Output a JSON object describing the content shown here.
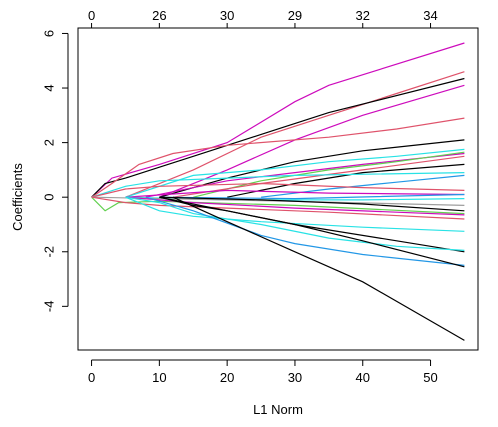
{
  "chart_data": {
    "type": "line",
    "title": "",
    "xlabel": "L1 Norm",
    "ylabel": "Coefficients",
    "xlim": [
      -2,
      57
    ],
    "ylim": [
      -5.6,
      6.2
    ],
    "x_ticks": [
      0,
      10,
      20,
      30,
      40,
      50
    ],
    "x_tick_labels": [
      "0",
      "10",
      "20",
      "30",
      "40",
      "50"
    ],
    "y_ticks": [
      -4,
      -2,
      0,
      2,
      4,
      6
    ],
    "y_tick_labels": [
      "-4",
      "-2",
      "0",
      "2",
      "4",
      "6"
    ],
    "top_ticks": [
      0,
      10,
      20,
      30,
      40,
      50
    ],
    "top_tick_labels": [
      "0",
      "26",
      "30",
      "29",
      "32",
      "34"
    ],
    "grid": false,
    "legend": "none",
    "series": [
      {
        "color": "#CD0BBC",
        "points": [
          [
            0,
            0
          ],
          [
            3,
            0.7
          ],
          [
            10,
            1.2
          ],
          [
            20,
            2
          ],
          [
            30,
            3.5
          ],
          [
            35,
            4.1
          ],
          [
            55,
            5.65
          ]
        ]
      },
      {
        "color": "#DF536B",
        "points": [
          [
            5,
            0
          ],
          [
            15,
            1
          ],
          [
            25,
            2.2
          ],
          [
            35,
            3
          ],
          [
            45,
            3.8
          ],
          [
            55,
            4.6
          ]
        ]
      },
      {
        "color": "#000000",
        "points": [
          [
            0,
            0
          ],
          [
            2,
            0.5
          ],
          [
            5,
            0.7
          ],
          [
            10,
            1.1
          ],
          [
            15,
            1.5
          ],
          [
            25,
            2.3
          ],
          [
            35,
            3.1
          ],
          [
            55,
            4.35
          ]
        ]
      },
      {
        "color": "#CD0BBC",
        "points": [
          [
            10,
            0
          ],
          [
            20,
            1
          ],
          [
            30,
            2.1
          ],
          [
            40,
            3
          ],
          [
            55,
            4.1
          ]
        ]
      },
      {
        "color": "#DF536B",
        "points": [
          [
            0,
            0
          ],
          [
            3,
            0.5
          ],
          [
            7,
            1.2
          ],
          [
            12,
            1.6
          ],
          [
            20,
            1.9
          ],
          [
            35,
            2.2
          ],
          [
            45,
            2.5
          ],
          [
            55,
            2.9
          ]
        ]
      },
      {
        "color": "#000000",
        "points": [
          [
            10,
            0
          ],
          [
            20,
            0.7
          ],
          [
            30,
            1.3
          ],
          [
            40,
            1.7
          ],
          [
            55,
            2.1
          ]
        ]
      },
      {
        "color": "#28E2E5",
        "points": [
          [
            5,
            0
          ],
          [
            15,
            0.8
          ],
          [
            25,
            1
          ],
          [
            35,
            1.3
          ],
          [
            45,
            1.5
          ],
          [
            55,
            1.75
          ]
        ]
      },
      {
        "color": "#CD0BBC",
        "points": [
          [
            8,
            0
          ],
          [
            20,
            0.6
          ],
          [
            30,
            0.9
          ],
          [
            40,
            1.2
          ],
          [
            55,
            1.6
          ]
        ]
      },
      {
        "color": "#61D04F",
        "points": [
          [
            15,
            0
          ],
          [
            25,
            0.6
          ],
          [
            35,
            1
          ],
          [
            45,
            1.3
          ],
          [
            55,
            1.65
          ]
        ]
      },
      {
        "color": "#DF536B",
        "points": [
          [
            12,
            0
          ],
          [
            25,
            0.5
          ],
          [
            40,
            1
          ],
          [
            55,
            1.5
          ]
        ]
      },
      {
        "color": "#000000",
        "points": [
          [
            20,
            0
          ],
          [
            30,
            0.5
          ],
          [
            40,
            0.9
          ],
          [
            55,
            1.2
          ]
        ]
      },
      {
        "color": "#2297E6",
        "points": [
          [
            25,
            0
          ],
          [
            35,
            0.3
          ],
          [
            45,
            0.55
          ],
          [
            55,
            0.8
          ]
        ]
      },
      {
        "color": "#28E2E5",
        "points": [
          [
            0,
            0
          ],
          [
            5,
            0.4
          ],
          [
            10,
            0.6
          ],
          [
            20,
            0.7
          ],
          [
            30,
            0.8
          ],
          [
            55,
            0.9
          ]
        ]
      },
      {
        "color": "#DF536B",
        "points": [
          [
            0,
            0
          ],
          [
            5,
            0.3
          ],
          [
            10,
            0.4
          ],
          [
            25,
            0.5
          ],
          [
            40,
            0.35
          ],
          [
            55,
            0.25
          ]
        ]
      },
      {
        "color": "#CD0BBC",
        "points": [
          [
            5,
            0
          ],
          [
            20,
            0.25
          ],
          [
            35,
            0.15
          ],
          [
            55,
            0.1
          ]
        ]
      },
      {
        "color": "#2297E6",
        "points": [
          [
            10,
            0
          ],
          [
            30,
            -0.05
          ],
          [
            55,
            0.1
          ]
        ]
      },
      {
        "color": "#28E2E5",
        "points": [
          [
            5,
            0
          ],
          [
            20,
            -0.1
          ],
          [
            40,
            -0.1
          ],
          [
            55,
            -0.05
          ]
        ]
      },
      {
        "color": "#9E9E9E",
        "points": [
          [
            0,
            0
          ],
          [
            30,
            -0.15
          ],
          [
            55,
            -0.3
          ]
        ]
      },
      {
        "color": "#000000",
        "points": [
          [
            10,
            0
          ],
          [
            25,
            -0.1
          ],
          [
            40,
            -0.25
          ],
          [
            55,
            -0.5
          ]
        ]
      },
      {
        "color": "#61D04F",
        "points": [
          [
            0,
            0
          ],
          [
            2,
            -0.5
          ],
          [
            4,
            -0.2
          ],
          [
            10,
            -0.15
          ],
          [
            30,
            -0.3
          ],
          [
            55,
            -0.6
          ]
        ]
      },
      {
        "color": "#DF536B",
        "points": [
          [
            0,
            0
          ],
          [
            5,
            -0.2
          ],
          [
            10,
            -0.3
          ],
          [
            20,
            -0.4
          ],
          [
            35,
            -0.55
          ],
          [
            55,
            -0.8
          ]
        ]
      },
      {
        "color": "#CD0BBC",
        "points": [
          [
            5,
            0
          ],
          [
            15,
            -0.2
          ],
          [
            30,
            -0.4
          ],
          [
            45,
            -0.55
          ],
          [
            55,
            -0.65
          ]
        ]
      },
      {
        "color": "#28E2E5",
        "points": [
          [
            5,
            0
          ],
          [
            10,
            -0.5
          ],
          [
            15,
            -0.7
          ],
          [
            25,
            -0.9
          ],
          [
            40,
            -1.1
          ],
          [
            55,
            -1.25
          ]
        ]
      },
      {
        "color": "#000000",
        "points": [
          [
            10,
            0
          ],
          [
            20,
            -0.5
          ],
          [
            30,
            -1
          ],
          [
            45,
            -1.6
          ],
          [
            55,
            -2
          ]
        ]
      },
      {
        "color": "#28E2E5",
        "points": [
          [
            5,
            0
          ],
          [
            10,
            -0.2
          ],
          [
            15,
            -0.6
          ],
          [
            25,
            -1
          ],
          [
            35,
            -1.5
          ],
          [
            45,
            -1.8
          ],
          [
            55,
            -1.95
          ]
        ]
      },
      {
        "color": "#2297E6",
        "points": [
          [
            8,
            0
          ],
          [
            15,
            -0.5
          ],
          [
            25,
            -1.4
          ],
          [
            30,
            -1.7
          ],
          [
            40,
            -2.1
          ],
          [
            55,
            -2.5
          ]
        ]
      },
      {
        "color": "#000000",
        "points": [
          [
            10,
            0
          ],
          [
            15,
            -0.3
          ],
          [
            20,
            -0.5
          ],
          [
            25,
            -0.75
          ],
          [
            30,
            -1
          ],
          [
            40,
            -1.6
          ],
          [
            55,
            -2.55
          ]
        ]
      },
      {
        "color": "#000000",
        "points": [
          [
            12,
            0
          ],
          [
            20,
            -0.9
          ],
          [
            30,
            -2
          ],
          [
            40,
            -3.1
          ],
          [
            55,
            -5.25
          ]
        ]
      }
    ]
  }
}
